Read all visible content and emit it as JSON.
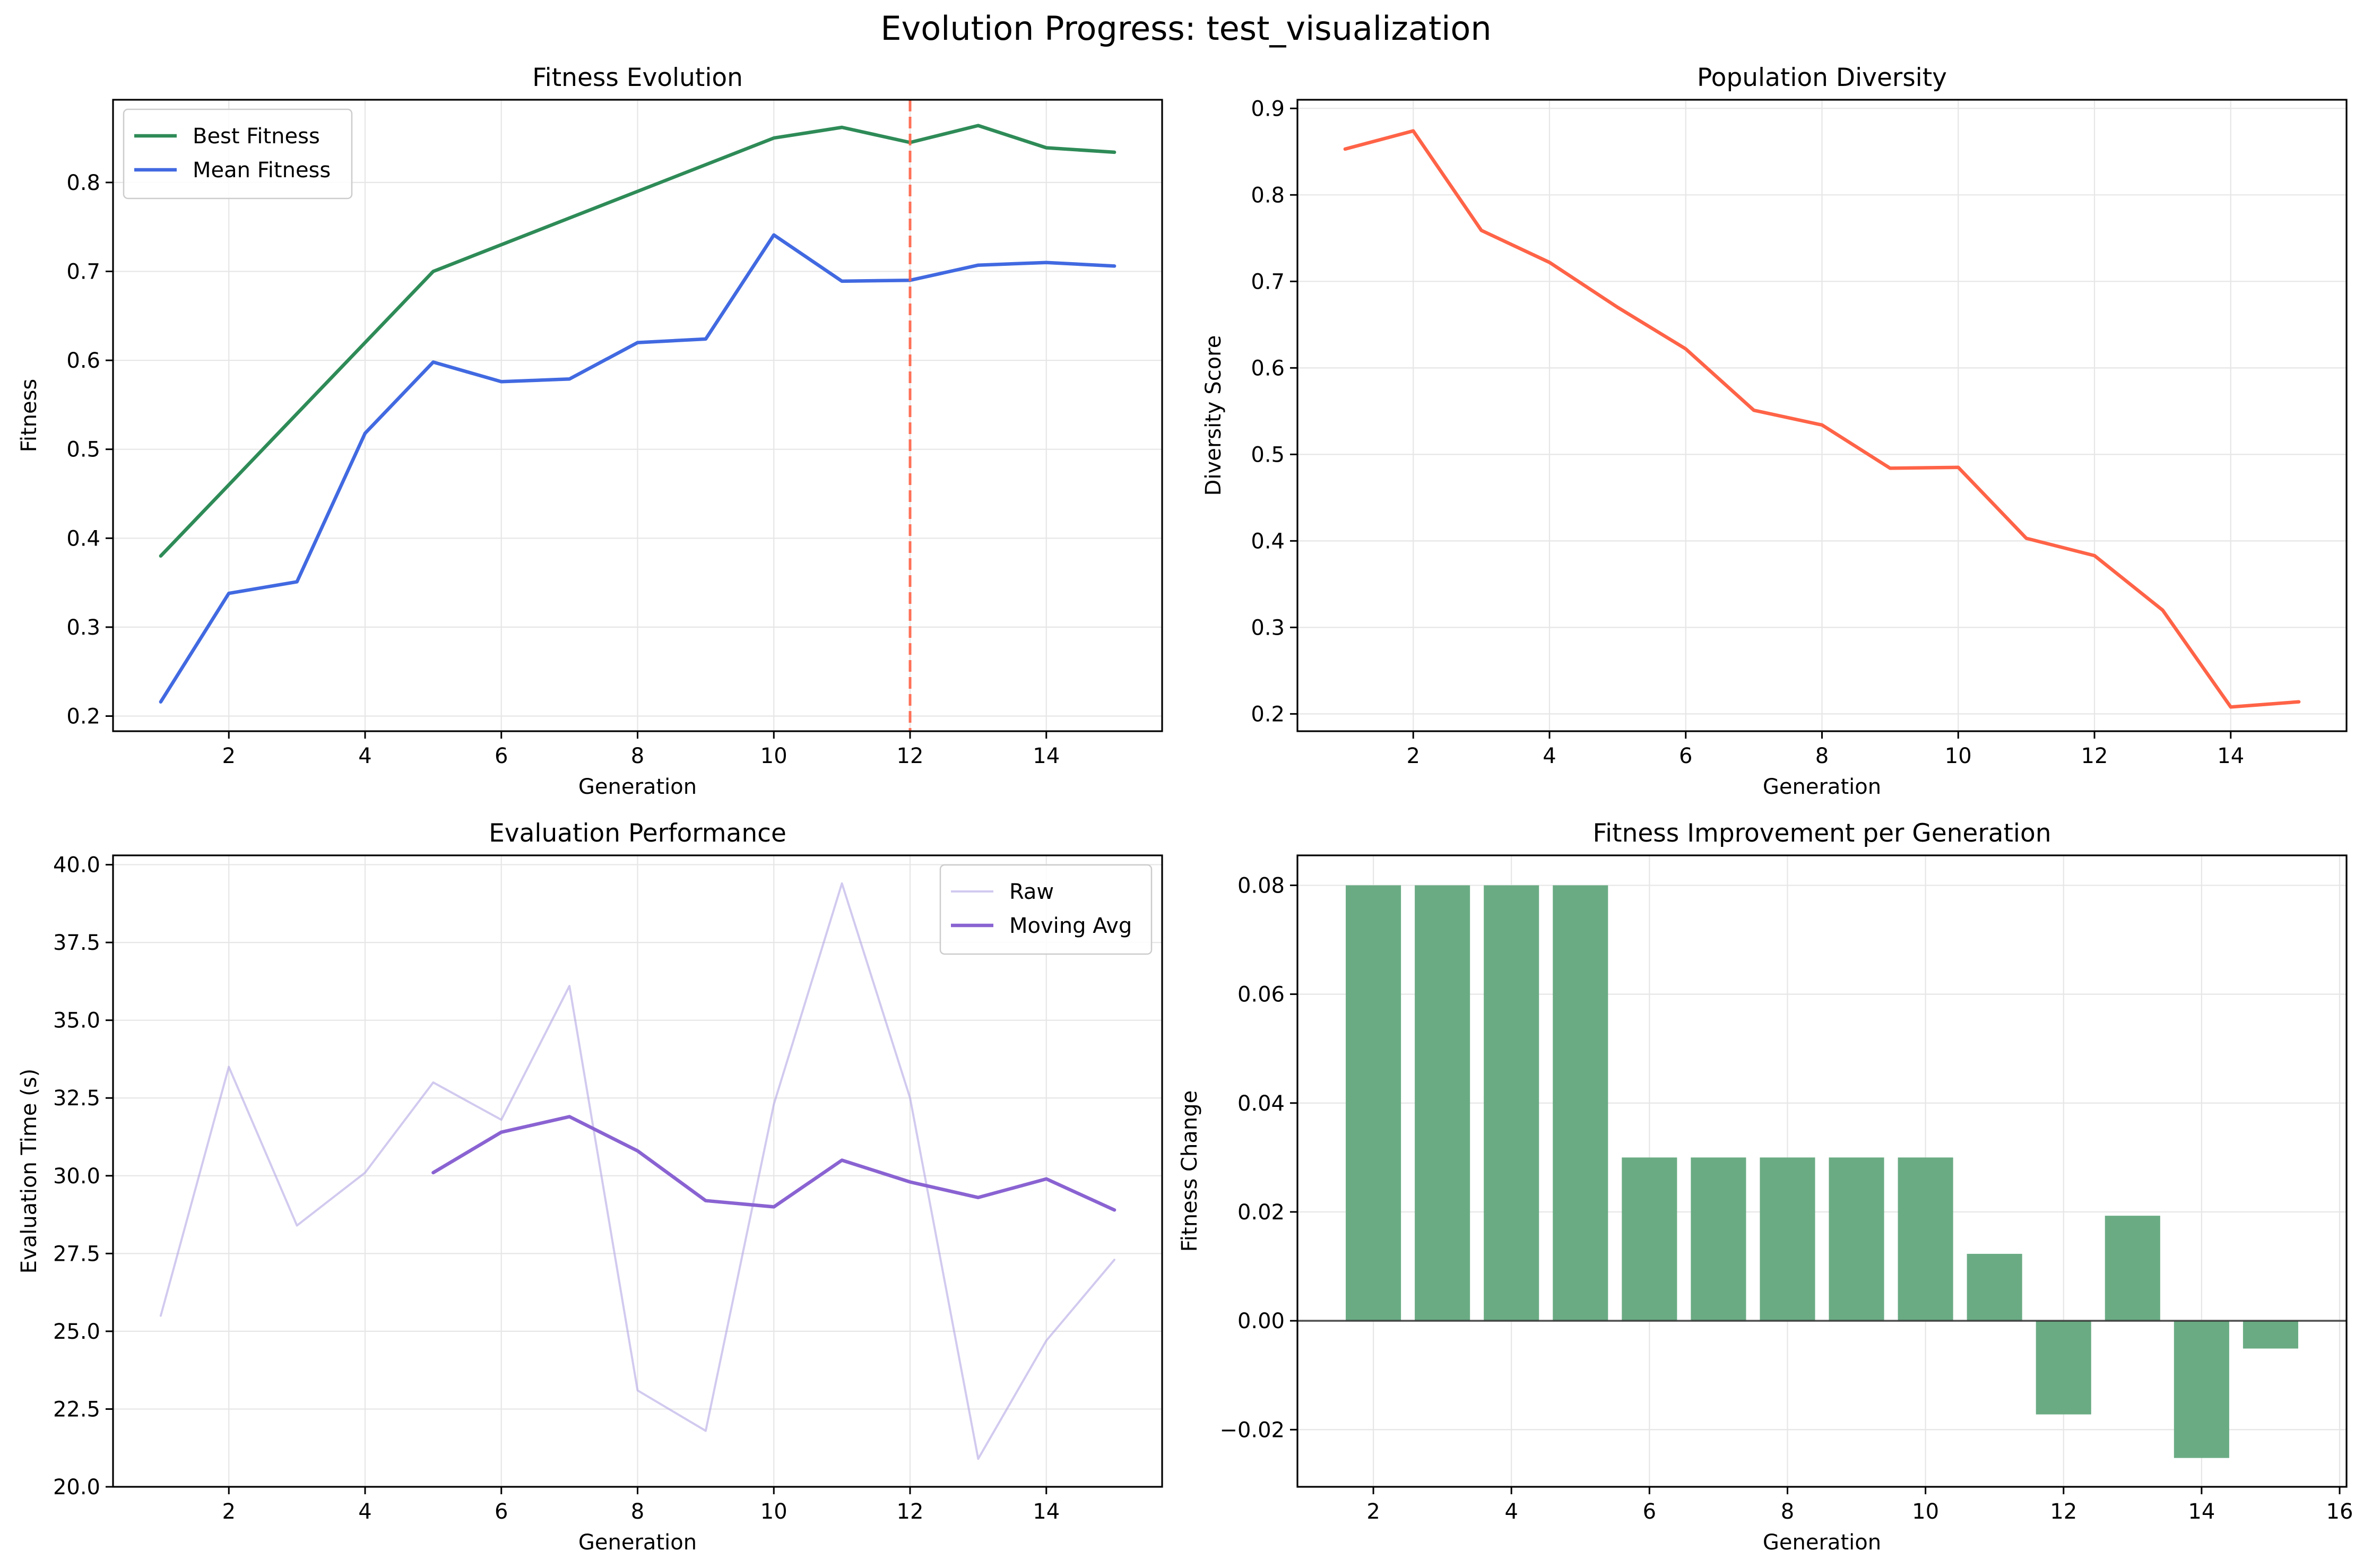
{
  "suptitle": "Evolution Progress: test_visualization",
  "colors": {
    "best": "#2e8b57",
    "mean": "#4169e1",
    "diversity": "#ff6347",
    "raw": "#b4a7e5",
    "moving": "#8a63d2",
    "bar": "#6aab83",
    "vline": "#ff6347",
    "axis": "#000000",
    "grid": "#e6e6e6"
  },
  "chart_data": [
    {
      "type": "line",
      "title": "Fitness Evolution",
      "xlabel": "Generation",
      "ylabel": "Fitness",
      "xlim": [
        0.3,
        15.7
      ],
      "ylim": [
        0.183,
        0.893
      ],
      "xticks": [
        2,
        4,
        6,
        8,
        10,
        12,
        14
      ],
      "yticks": [
        0.2,
        0.3,
        0.4,
        0.5,
        0.6,
        0.7,
        0.8
      ],
      "ytick_labels": [
        "0.2",
        "0.3",
        "0.4",
        "0.5",
        "0.6",
        "0.7",
        "0.8"
      ],
      "grid": true,
      "legend": "upper left",
      "x": [
        1,
        2,
        3,
        4,
        5,
        6,
        7,
        8,
        9,
        10,
        11,
        12,
        13,
        14,
        15
      ],
      "series": [
        {
          "name": "Best Fitness",
          "color_key": "best",
          "values": [
            0.38,
            0.46,
            0.54,
            0.62,
            0.7,
            0.73,
            0.76,
            0.79,
            0.82,
            0.85,
            0.862,
            0.845,
            0.864,
            0.839,
            0.834
          ]
        },
        {
          "name": "Mean Fitness",
          "color_key": "mean",
          "values": [
            0.216,
            0.338,
            0.351,
            0.518,
            0.598,
            0.576,
            0.579,
            0.62,
            0.624,
            0.741,
            0.689,
            0.69,
            0.707,
            0.71,
            0.706
          ]
        }
      ],
      "vline": {
        "x": 12,
        "style": "dashed"
      }
    },
    {
      "type": "line",
      "title": "Population Diversity",
      "xlabel": "Generation",
      "ylabel": "Diversity Score",
      "xlim": [
        0.3,
        15.7
      ],
      "ylim": [
        0.18,
        0.91
      ],
      "xticks": [
        2,
        4,
        6,
        8,
        10,
        12,
        14
      ],
      "yticks": [
        0.2,
        0.3,
        0.4,
        0.5,
        0.6,
        0.7,
        0.8,
        0.9
      ],
      "ytick_labels": [
        "0.2",
        "0.3",
        "0.4",
        "0.5",
        "0.6",
        "0.7",
        "0.8",
        "0.9"
      ],
      "grid": true,
      "x": [
        1,
        2,
        3,
        4,
        5,
        6,
        7,
        8,
        9,
        10,
        11,
        12,
        13,
        14,
        15
      ],
      "series": [
        {
          "color_key": "diversity",
          "values": [
            0.853,
            0.874,
            0.759,
            0.722,
            0.67,
            0.622,
            0.551,
            0.534,
            0.484,
            0.485,
            0.403,
            0.383,
            0.32,
            0.208,
            0.214
          ]
        }
      ]
    },
    {
      "type": "line",
      "title": "Evaluation Performance",
      "xlabel": "Generation",
      "ylabel": "Evaluation Time (s)",
      "xlim": [
        0.3,
        15.7
      ],
      "ylim": [
        20.0,
        40.3
      ],
      "xticks": [
        2,
        4,
        6,
        8,
        10,
        12,
        14
      ],
      "yticks": [
        20.0,
        22.5,
        25.0,
        27.5,
        30.0,
        32.5,
        35.0,
        37.5,
        40.0
      ],
      "ytick_labels": [
        "20.0",
        "22.5",
        "25.0",
        "27.5",
        "30.0",
        "32.5",
        "35.0",
        "37.5",
        "40.0"
      ],
      "grid": true,
      "legend": "upper right",
      "series": [
        {
          "name": "Raw",
          "color_key": "raw",
          "x": [
            1,
            2,
            3,
            4,
            5,
            6,
            7,
            8,
            9,
            10,
            11,
            12,
            13,
            14,
            15
          ],
          "values": [
            25.5,
            33.5,
            28.4,
            30.1,
            33.0,
            31.8,
            36.1,
            23.1,
            21.8,
            32.3,
            39.4,
            32.5,
            20.9,
            24.7,
            27.3
          ]
        },
        {
          "name": "Moving Avg",
          "color_key": "moving",
          "x": [
            5,
            6,
            7,
            8,
            9,
            10,
            11,
            12,
            13,
            14,
            15
          ],
          "values": [
            30.1,
            31.4,
            31.9,
            30.8,
            29.2,
            29.0,
            30.5,
            29.8,
            29.3,
            29.9,
            28.9
          ]
        }
      ]
    },
    {
      "type": "bar",
      "title": "Fitness Improvement per Generation",
      "xlabel": "Generation",
      "ylabel": "Fitness Change",
      "xlim": [
        0.9,
        16.1
      ],
      "ylim": [
        -0.0305,
        0.0855
      ],
      "xticks": [
        2,
        4,
        6,
        8,
        10,
        12,
        14,
        16
      ],
      "yticks": [
        -0.02,
        0.0,
        0.02,
        0.04,
        0.06,
        0.08
      ],
      "ytick_labels": [
        "−0.02",
        "0.00",
        "0.02",
        "0.04",
        "0.06",
        "0.08"
      ],
      "grid": true,
      "zero_line": true,
      "categories": [
        2,
        3,
        4,
        5,
        6,
        7,
        8,
        9,
        10,
        11,
        12,
        13,
        14,
        15
      ],
      "values": [
        0.08,
        0.08,
        0.08,
        0.08,
        0.03,
        0.03,
        0.03,
        0.03,
        0.03,
        0.0123,
        -0.0172,
        0.0193,
        -0.0252,
        -0.0051
      ]
    }
  ]
}
